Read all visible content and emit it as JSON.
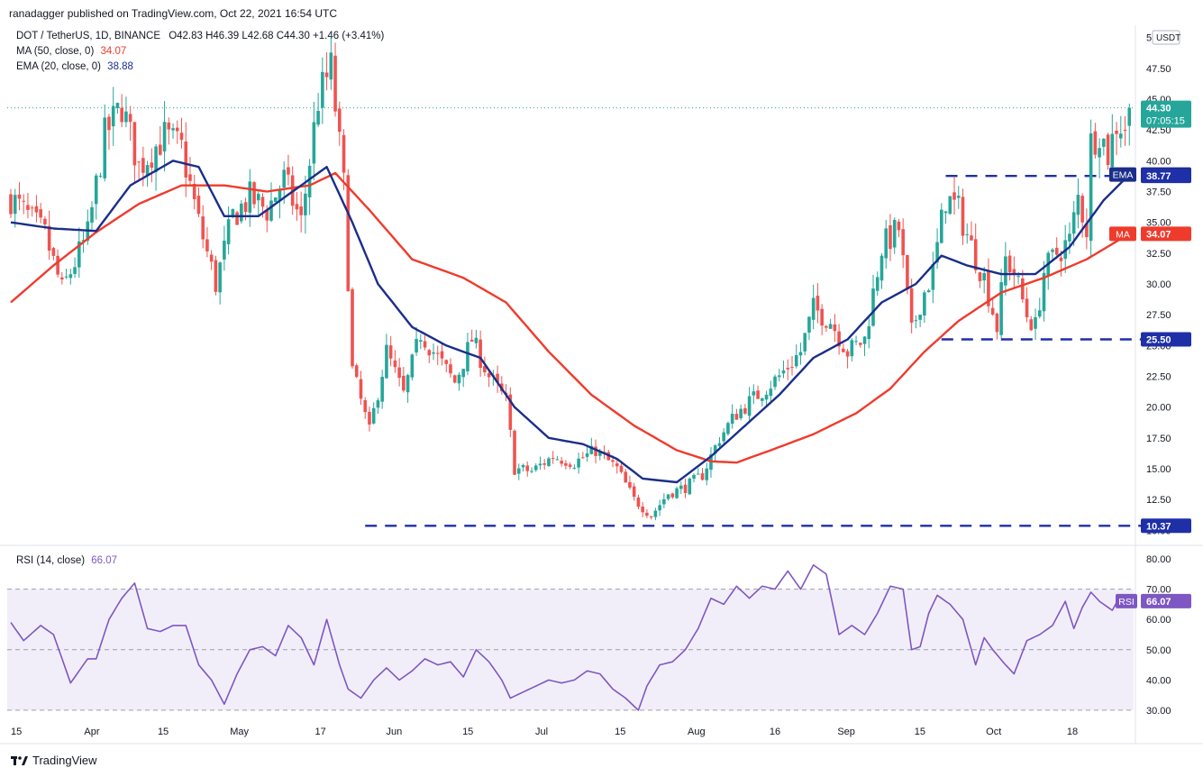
{
  "header": {
    "publisher": "ranadagger published on TradingView.com, Oct 22, 2021 16:54 UTC"
  },
  "legend": {
    "symbol": "DOT / TetherUS, 1D, BINANCE",
    "ohlc": "O42.83  H46.39  L42.68  C44.30  +1.46 (+3.41%)",
    "ma_label": "MA (50, close, 0)",
    "ma_value": "34.07",
    "ema_label": "EMA (20, close, 0)",
    "ema_value": "38.88",
    "rsi_label": "RSI (14, close)",
    "rsi_value": "66.07"
  },
  "axis": {
    "currency": "USDT",
    "countdown": "07:05:15"
  },
  "footer": {
    "brand": "TradingView"
  },
  "colors": {
    "up": "#26a69a",
    "down": "#ef5350",
    "ema": "#1a2e8a",
    "ma": "#ef3b2c",
    "rsi": "#7e57c2",
    "level": "#1f2fa8"
  },
  "chart_data": {
    "type": "candlestick",
    "x_tick_labels": [
      "15",
      "Apr",
      "15",
      "May",
      "17",
      "Jun",
      "15",
      "Jul",
      "15",
      "Aug",
      "16",
      "Sep",
      "15",
      "Oct",
      "18"
    ],
    "y_ticks": [
      10.0,
      12.5,
      15.0,
      17.5,
      20.0,
      22.5,
      25.0,
      27.5,
      30.0,
      32.5,
      35.0,
      37.5,
      40.0,
      42.5,
      45.0,
      47.5,
      50.0
    ],
    "ylim": [
      9.0,
      51.0
    ],
    "rsi_ticks": [
      30.0,
      40.0,
      50.0,
      60.0,
      70.0,
      80.0
    ],
    "rsi_ylim": [
      27,
      83
    ],
    "rsi_band": [
      30,
      70
    ],
    "last_price": 44.3,
    "price_labels": [
      {
        "name": "last",
        "value": 44.3
      },
      {
        "name": "EMA",
        "value": 38.88
      },
      {
        "name": "level",
        "value": 38.77
      },
      {
        "name": "MA",
        "value": 34.07
      },
      {
        "name": "level",
        "value": 25.5
      },
      {
        "name": "level",
        "value": 10.37
      }
    ],
    "levels": [
      {
        "value": 38.77,
        "from_day": 219,
        "to_day": 268
      },
      {
        "value": 25.5,
        "from_day": 218,
        "to_day": 268
      },
      {
        "value": 10.37,
        "from_day": 83,
        "to_day": 268
      }
    ],
    "anchors": [
      [
        0,
        37.0
      ],
      [
        8,
        34.0
      ],
      [
        12,
        29.5
      ],
      [
        18,
        34.0
      ],
      [
        22,
        42.0
      ],
      [
        26,
        44.5
      ],
      [
        30,
        39.5
      ],
      [
        36,
        42.0
      ],
      [
        40,
        41.0
      ],
      [
        44,
        35.0
      ],
      [
        48,
        30.0
      ],
      [
        52,
        35.5
      ],
      [
        56,
        37.0
      ],
      [
        60,
        36.0
      ],
      [
        64,
        38.5
      ],
      [
        68,
        35.0
      ],
      [
        72,
        45.0
      ],
      [
        75,
        47.5
      ],
      [
        78,
        38.0
      ],
      [
        80,
        23.0
      ],
      [
        84,
        18.0
      ],
      [
        88,
        24.5
      ],
      [
        92,
        21.0
      ],
      [
        96,
        26.0
      ],
      [
        100,
        24.0
      ],
      [
        104,
        22.0
      ],
      [
        108,
        25.5
      ],
      [
        112,
        22.5
      ],
      [
        116,
        20.5
      ],
      [
        118,
        15.0
      ],
      [
        122,
        14.8
      ],
      [
        127,
        16.0
      ],
      [
        132,
        15.5
      ],
      [
        137,
        16.5
      ],
      [
        142,
        15.0
      ],
      [
        146,
        12.5
      ],
      [
        150,
        11.2
      ],
      [
        154,
        13.0
      ],
      [
        158,
        13.5
      ],
      [
        162,
        14.5
      ],
      [
        166,
        17.5
      ],
      [
        170,
        19.5
      ],
      [
        175,
        21.0
      ],
      [
        180,
        22.5
      ],
      [
        185,
        24.5
      ],
      [
        188,
        28.0
      ],
      [
        192,
        27.0
      ],
      [
        196,
        24.5
      ],
      [
        200,
        25.5
      ],
      [
        204,
        33.0
      ],
      [
        208,
        34.5
      ],
      [
        211,
        26.0
      ],
      [
        213,
        28.5
      ],
      [
        216,
        31.0
      ],
      [
        219,
        37.0
      ],
      [
        222,
        36.0
      ],
      [
        225,
        33.0
      ],
      [
        228,
        30.5
      ],
      [
        231,
        26.5
      ],
      [
        233,
        32.0
      ],
      [
        235,
        31.0
      ],
      [
        238,
        27.5
      ],
      [
        240,
        26.5
      ],
      [
        242,
        31.0
      ],
      [
        245,
        32.5
      ],
      [
        248,
        33.5
      ],
      [
        250,
        37.0
      ],
      [
        252,
        34.5
      ],
      [
        253,
        41.5
      ],
      [
        255,
        42.5
      ],
      [
        257,
        40.5
      ],
      [
        259,
        43.0
      ],
      [
        261,
        42.83
      ],
      [
        262,
        44.3
      ]
    ],
    "rsi_anchors": [
      [
        0,
        59
      ],
      [
        3,
        53
      ],
      [
        7,
        58
      ],
      [
        10,
        55
      ],
      [
        14,
        39
      ],
      [
        18,
        47
      ],
      [
        20,
        47
      ],
      [
        23,
        60
      ],
      [
        26,
        67
      ],
      [
        29,
        72
      ],
      [
        32,
        57
      ],
      [
        35,
        56
      ],
      [
        38,
        58
      ],
      [
        41,
        58
      ],
      [
        44,
        45
      ],
      [
        47,
        40
      ],
      [
        50,
        32
      ],
      [
        53,
        42
      ],
      [
        56,
        50
      ],
      [
        59,
        51
      ],
      [
        62,
        48
      ],
      [
        65,
        58
      ],
      [
        68,
        54
      ],
      [
        71,
        45
      ],
      [
        74,
        60
      ],
      [
        77,
        45
      ],
      [
        79,
        37
      ],
      [
        82,
        34
      ],
      [
        85,
        40
      ],
      [
        88,
        44
      ],
      [
        91,
        40
      ],
      [
        94,
        43
      ],
      [
        97,
        47
      ],
      [
        100,
        45
      ],
      [
        103,
        46
      ],
      [
        106,
        41
      ],
      [
        109,
        50
      ],
      [
        112,
        46
      ],
      [
        115,
        40
      ],
      [
        117,
        34
      ],
      [
        120,
        36
      ],
      [
        123,
        38
      ],
      [
        126,
        40
      ],
      [
        129,
        39
      ],
      [
        132,
        40
      ],
      [
        135,
        43
      ],
      [
        138,
        42
      ],
      [
        141,
        37
      ],
      [
        144,
        34
      ],
      [
        147,
        30
      ],
      [
        149,
        38
      ],
      [
        152,
        45
      ],
      [
        155,
        46
      ],
      [
        158,
        50
      ],
      [
        161,
        57
      ],
      [
        164,
        67
      ],
      [
        167,
        65
      ],
      [
        170,
        71
      ],
      [
        173,
        67
      ],
      [
        176,
        71
      ],
      [
        179,
        70
      ],
      [
        182,
        76
      ],
      [
        185,
        70
      ],
      [
        188,
        78
      ],
      [
        191,
        75
      ],
      [
        194,
        55
      ],
      [
        197,
        58
      ],
      [
        200,
        55
      ],
      [
        203,
        62
      ],
      [
        206,
        71
      ],
      [
        209,
        70
      ],
      [
        211,
        50
      ],
      [
        213,
        51
      ],
      [
        215,
        62
      ],
      [
        217,
        68
      ],
      [
        220,
        65
      ],
      [
        223,
        60
      ],
      [
        226,
        45
      ],
      [
        228,
        54
      ],
      [
        230,
        50
      ],
      [
        233,
        45
      ],
      [
        235,
        42
      ],
      [
        238,
        53
      ],
      [
        241,
        55
      ],
      [
        244,
        58
      ],
      [
        247,
        66
      ],
      [
        249,
        57
      ],
      [
        251,
        64
      ],
      [
        253,
        69
      ],
      [
        255,
        66
      ],
      [
        258,
        63
      ],
      [
        260,
        68
      ],
      [
        261,
        64
      ],
      [
        262,
        66.07
      ]
    ],
    "ema_anchors": [
      [
        0,
        35.0
      ],
      [
        10,
        34.5
      ],
      [
        20,
        34.3
      ],
      [
        28,
        38.0
      ],
      [
        38,
        40.0
      ],
      [
        44,
        39.5
      ],
      [
        50,
        35.5
      ],
      [
        58,
        35.5
      ],
      [
        66,
        37.5
      ],
      [
        74,
        39.5
      ],
      [
        80,
        35.0
      ],
      [
        86,
        30.0
      ],
      [
        94,
        26.5
      ],
      [
        102,
        25.0
      ],
      [
        110,
        24.0
      ],
      [
        118,
        20.0
      ],
      [
        126,
        17.5
      ],
      [
        134,
        17.0
      ],
      [
        142,
        15.8
      ],
      [
        148,
        14.2
      ],
      [
        156,
        13.9
      ],
      [
        164,
        16.0
      ],
      [
        172,
        18.5
      ],
      [
        180,
        21.0
      ],
      [
        188,
        24.0
      ],
      [
        196,
        25.5
      ],
      [
        204,
        28.5
      ],
      [
        212,
        30.0
      ],
      [
        218,
        32.3
      ],
      [
        224,
        31.5
      ],
      [
        232,
        30.8
      ],
      [
        240,
        30.8
      ],
      [
        248,
        33.0
      ],
      [
        256,
        36.8
      ],
      [
        262,
        38.88
      ]
    ],
    "ma_anchors": [
      [
        0,
        28.5
      ],
      [
        10,
        31.5
      ],
      [
        20,
        34.2
      ],
      [
        30,
        36.5
      ],
      [
        40,
        38.0
      ],
      [
        50,
        38.0
      ],
      [
        60,
        37.5
      ],
      [
        70,
        38.0
      ],
      [
        76,
        39.0
      ],
      [
        84,
        36.0
      ],
      [
        94,
        32.0
      ],
      [
        106,
        30.5
      ],
      [
        116,
        28.5
      ],
      [
        126,
        24.5
      ],
      [
        136,
        21.0
      ],
      [
        146,
        18.5
      ],
      [
        156,
        16.5
      ],
      [
        164,
        15.6
      ],
      [
        170,
        15.5
      ],
      [
        178,
        16.5
      ],
      [
        188,
        17.8
      ],
      [
        198,
        19.5
      ],
      [
        206,
        21.5
      ],
      [
        214,
        24.5
      ],
      [
        222,
        27.0
      ],
      [
        232,
        29.3
      ],
      [
        242,
        30.5
      ],
      [
        252,
        32.0
      ],
      [
        262,
        34.07
      ]
    ]
  }
}
